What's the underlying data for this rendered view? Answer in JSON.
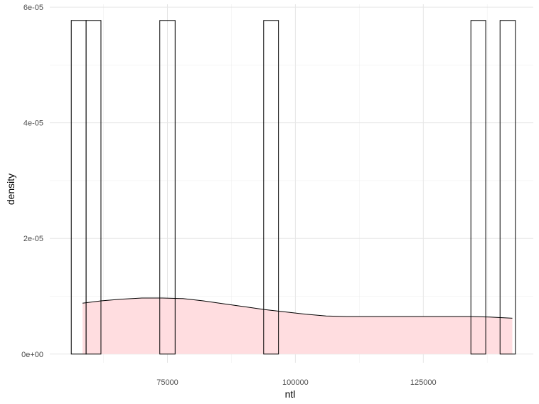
{
  "chart_data": {
    "type": "histogram",
    "title": "",
    "xlabel": "ntl",
    "ylabel": "density",
    "x_ticks": [
      {
        "value": 75000,
        "label": "75000"
      },
      {
        "value": 100000,
        "label": "100000"
      },
      {
        "value": 125000,
        "label": "125000"
      }
    ],
    "y_ticks": [
      {
        "value": 0,
        "label": "0e+00"
      },
      {
        "value": 2e-05,
        "label": "2e-05"
      },
      {
        "value": 4e-05,
        "label": "4e-05"
      },
      {
        "value": 6e-05,
        "label": "6e-05"
      }
    ],
    "xlim": [
      52000,
      146500
    ],
    "ylim": [
      -1.5e-06,
      6.05e-05
    ],
    "grid": true,
    "legend": "none",
    "histogram": {
      "bar_fill": "#ffffff",
      "bar_outline": "#000000",
      "bars": [
        {
          "x0": 56200,
          "x1": 59100,
          "density": 5.77e-05
        },
        {
          "x0": 59100,
          "x1": 62000,
          "density": 5.77e-05
        },
        {
          "x0": 73500,
          "x1": 76500,
          "density": 5.77e-05
        },
        {
          "x0": 93800,
          "x1": 96700,
          "density": 5.77e-05
        },
        {
          "x0": 134300,
          "x1": 137200,
          "density": 5.77e-05
        },
        {
          "x0": 140000,
          "x1": 143000,
          "density": 5.77e-05
        }
      ]
    },
    "density_curve": {
      "fill": "#ffdde0",
      "stroke": "#000000",
      "x": [
        58400,
        62000,
        66000,
        70000,
        74000,
        78000,
        82000,
        86000,
        90000,
        94000,
        98000,
        102000,
        106000,
        110000,
        114000,
        118000,
        122000,
        126000,
        130000,
        134000,
        138000,
        142400
      ],
      "y": [
        8.8e-06,
        9.2e-06,
        9.5e-06,
        9.7e-06,
        9.7e-06,
        9.6e-06,
        9.2e-06,
        8.7e-06,
        8.2e-06,
        7.7e-06,
        7.3e-06,
        6.9e-06,
        6.6e-06,
        6.5e-06,
        6.5e-06,
        6.5e-06,
        6.5e-06,
        6.5e-06,
        6.5e-06,
        6.5e-06,
        6.4e-06,
        6.2e-06
      ]
    }
  }
}
